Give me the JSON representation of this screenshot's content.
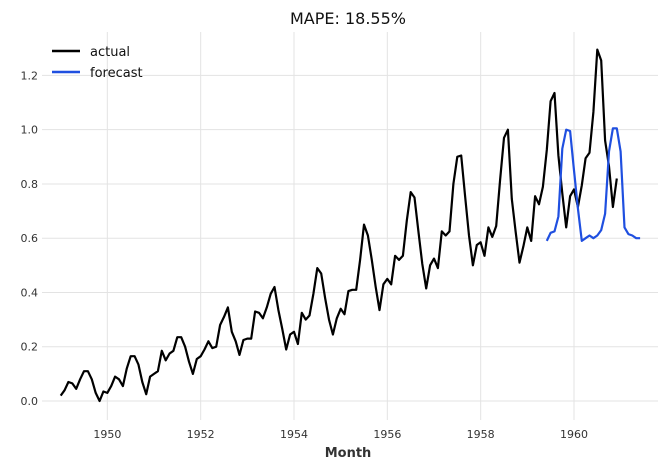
{
  "chart_data": {
    "type": "line",
    "title": "MAPE: 18.55%",
    "xlabel": "Month",
    "ylabel": "",
    "xlim": [
      1948.6,
      1961.8
    ],
    "ylim": [
      -0.07,
      1.36
    ],
    "xticks": [
      1950,
      1952,
      1954,
      1956,
      1958,
      1960
    ],
    "yticks": [
      0.0,
      0.2,
      0.4,
      0.6,
      0.8,
      1.0,
      1.2
    ],
    "x_start": 1949.0,
    "x_step": 0.08333,
    "grid": true,
    "legend_position": "top-left",
    "series": [
      {
        "name": "actual",
        "color": "#000000",
        "start_index": 0,
        "values": [
          0.02,
          0.04,
          0.07,
          0.065,
          0.045,
          0.08,
          0.11,
          0.11,
          0.08,
          0.03,
          0.0,
          0.035,
          0.03,
          0.055,
          0.09,
          0.08,
          0.055,
          0.12,
          0.165,
          0.165,
          0.135,
          0.07,
          0.025,
          0.09,
          0.1,
          0.11,
          0.185,
          0.15,
          0.175,
          0.185,
          0.235,
          0.235,
          0.2,
          0.145,
          0.1,
          0.155,
          0.165,
          0.19,
          0.22,
          0.195,
          0.2,
          0.28,
          0.31,
          0.345,
          0.255,
          0.22,
          0.17,
          0.225,
          0.23,
          0.23,
          0.33,
          0.325,
          0.305,
          0.345,
          0.395,
          0.42,
          0.335,
          0.265,
          0.19,
          0.245,
          0.255,
          0.21,
          0.325,
          0.3,
          0.315,
          0.395,
          0.49,
          0.47,
          0.38,
          0.3,
          0.245,
          0.305,
          0.34,
          0.32,
          0.405,
          0.41,
          0.41,
          0.52,
          0.65,
          0.61,
          0.52,
          0.42,
          0.335,
          0.43,
          0.45,
          0.43,
          0.535,
          0.52,
          0.535,
          0.665,
          0.77,
          0.75,
          0.625,
          0.505,
          0.415,
          0.5,
          0.525,
          0.49,
          0.625,
          0.61,
          0.625,
          0.8,
          0.9,
          0.905,
          0.755,
          0.61,
          0.5,
          0.575,
          0.585,
          0.535,
          0.64,
          0.605,
          0.645,
          0.815,
          0.97,
          1.0,
          0.745,
          0.625,
          0.51,
          0.57,
          0.64,
          0.59,
          0.755,
          0.725,
          0.79,
          0.925,
          1.105,
          1.135,
          0.905,
          0.765,
          0.64,
          0.755,
          0.78,
          0.715,
          0.795,
          0.895,
          0.915,
          1.065,
          1.295,
          1.255,
          0.96,
          0.865,
          0.715,
          0.82
        ]
      },
      {
        "name": "forecast",
        "color": "#1f4fe0",
        "start_index": 125,
        "values": [
          0.59,
          0.62,
          0.625,
          0.68,
          0.93,
          1.0,
          0.995,
          0.85,
          0.71,
          0.59,
          0.6,
          0.61,
          0.6,
          0.61,
          0.63,
          0.69,
          0.92,
          1.005,
          1.005,
          0.92,
          0.64,
          0.615,
          0.61,
          0.6,
          0.6
        ]
      }
    ]
  }
}
